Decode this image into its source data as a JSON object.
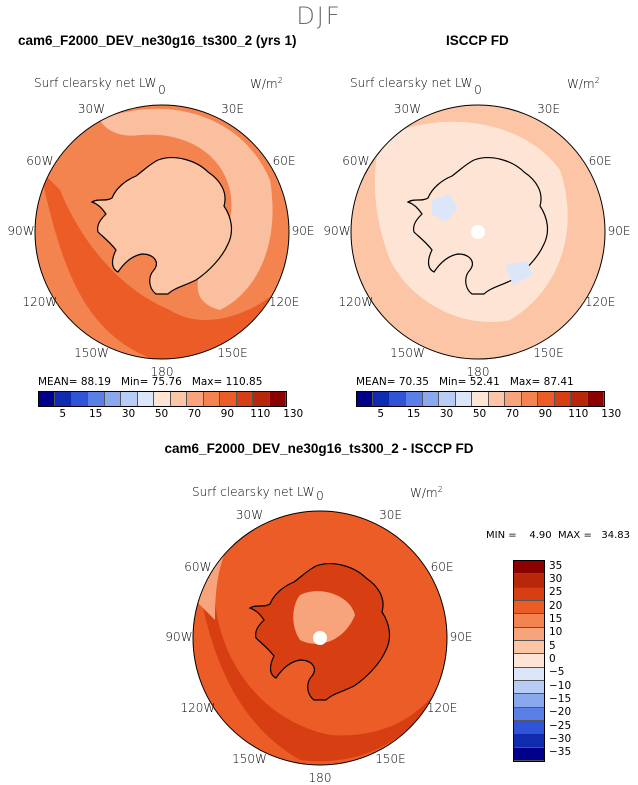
{
  "season": "DJF",
  "colors": {
    "white": "#ffffff",
    "coast": "#000000"
  },
  "chart_data": [
    {
      "type": "polar-contour-map",
      "title": "cam6_F2000_DEV_ne30g16_ts300_2 (yrs 1)",
      "variable": "Surf clearsky net LW",
      "units_base": "W/m",
      "units_exp": "2",
      "longitude_labels": [
        "0",
        "30E",
        "60E",
        "90E",
        "120E",
        "150E",
        "180",
        "150W",
        "120W",
        "90W",
        "60W",
        "30W"
      ],
      "mean_label": "MEAN=",
      "mean": "88.19",
      "min_label": "Min=",
      "min": "75.76",
      "max_label": "Max=",
      "max": "110.85",
      "levels": [
        "5",
        "15",
        "30",
        "50",
        "70",
        "90",
        "110",
        "130"
      ],
      "palette": [
        "#00008b",
        "#0f2bb0",
        "#2f54d6",
        "#5a7fe6",
        "#8aa8ee",
        "#b8cdf5",
        "#dbe7f9",
        "#fde4d4",
        "#fbc5a6",
        "#f7a37c",
        "#f3844f",
        "#ec5c26",
        "#d73f12",
        "#b8270a",
        "#8b0000"
      ],
      "field_colors": {
        "ocean": "#f3844f",
        "continent": "#fbc5a6",
        "warm_sector": "#ec5c26"
      }
    },
    {
      "type": "polar-contour-map",
      "title": "ISCCP FD",
      "variable": "Surf clearsky net LW",
      "units_base": "W/m",
      "units_exp": "2",
      "longitude_labels": [
        "0",
        "30E",
        "60E",
        "90E",
        "120E",
        "150E",
        "180",
        "150W",
        "120W",
        "90W",
        "60W",
        "30W"
      ],
      "mean_label": "MEAN=",
      "mean": "70.35",
      "min_label": "Min=",
      "min": "52.41",
      "max_label": "Max=",
      "max": "87.41",
      "levels": [
        "5",
        "15",
        "30",
        "50",
        "70",
        "90",
        "110",
        "130"
      ],
      "palette": [
        "#00008b",
        "#0f2bb0",
        "#2f54d6",
        "#5a7fe6",
        "#8aa8ee",
        "#b8cdf5",
        "#dbe7f9",
        "#fde4d4",
        "#fbc5a6",
        "#f7a37c",
        "#f3844f",
        "#ec5c26",
        "#d73f12",
        "#b8270a",
        "#8b0000"
      ],
      "field_colors": {
        "ocean": "#fbc5a6",
        "continent": "#fde4d4",
        "cool_spot": "#dbe7f9"
      }
    },
    {
      "type": "polar-contour-map",
      "title": "cam6_F2000_DEV_ne30g16_ts300_2 - ISCCP FD",
      "variable": "Surf clearsky net LW",
      "units_base": "W/m",
      "units_exp": "2",
      "longitude_labels": [
        "0",
        "30E",
        "60E",
        "90E",
        "120E",
        "150E",
        "180",
        "150W",
        "120W",
        "90W",
        "60W",
        "30W"
      ],
      "min_max_text": "MIN =    4.90  MAX =   34.83",
      "levels": [
        "35",
        "30",
        "25",
        "20",
        "15",
        "10",
        "5",
        "0",
        "−5",
        "−10",
        "−15",
        "−20",
        "−25",
        "−30",
        "−35"
      ],
      "palette_top_to_bottom": [
        "#8b0000",
        "#b8270a",
        "#d73f12",
        "#ec5c26",
        "#f3844f",
        "#f7a37c",
        "#fbc5a6",
        "#fde4d4",
        "#dbe7f9",
        "#b8cdf5",
        "#8aa8ee",
        "#5a7fe6",
        "#2f54d6",
        "#0f2bb0",
        "#00008b"
      ],
      "field_colors": {
        "ocean": "#ec5c26",
        "continent": "#f7a37c",
        "strong": "#d73f12"
      }
    }
  ]
}
